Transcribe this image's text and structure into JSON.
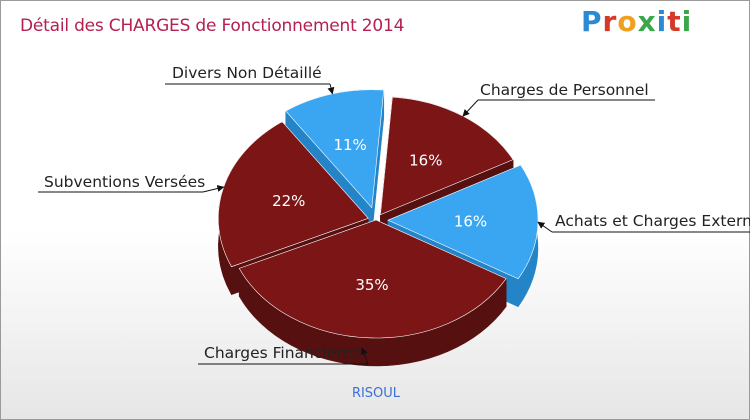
{
  "title": "Détail des CHARGES de Fonctionnement 2014",
  "logo": {
    "text": "Proxiti",
    "colors": [
      "#2a8ad4",
      "#d43a2a",
      "#f0a020",
      "#3aa84a",
      "#2a8ad4",
      "#d43a2a",
      "#3aa84a"
    ]
  },
  "commune": "RISOUL",
  "chart_data": {
    "type": "pie",
    "title": "Détail des CHARGES de Fonctionnement 2014",
    "slices": [
      {
        "label": "Charges de Personnel",
        "value": 16,
        "pct_label": "16%",
        "color": "#7b1516"
      },
      {
        "label": "Achats et Charges Externes",
        "value": 16,
        "pct_label": "16%",
        "color": "#3aa6f2"
      },
      {
        "label": "Charges Financières",
        "value": 35,
        "pct_label": "35%",
        "color": "#7b1516"
      },
      {
        "label": "Subventions Versées",
        "value": 22,
        "pct_label": "22%",
        "color": "#7b1516"
      },
      {
        "label": "Divers Non Détaillé",
        "value": 11,
        "pct_label": "11%",
        "color": "#3aa6f2"
      }
    ]
  }
}
